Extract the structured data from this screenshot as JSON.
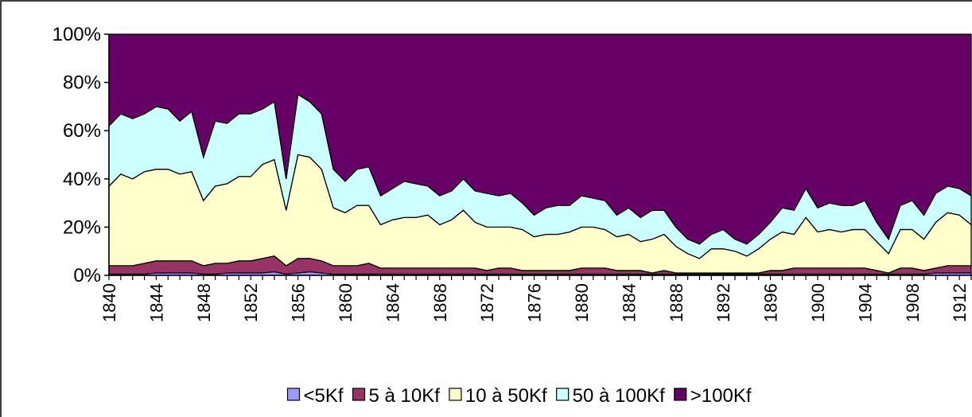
{
  "chart_data": {
    "type": "stacked_area_percent",
    "categories": [
      "1840",
      null,
      null,
      null,
      "1844",
      null,
      null,
      null,
      "1848",
      null,
      null,
      null,
      "1852",
      null,
      null,
      null,
      "1856",
      null,
      null,
      null,
      "1860",
      null,
      null,
      null,
      "1864",
      null,
      null,
      null,
      "1868",
      null,
      null,
      null,
      "1872",
      null,
      null,
      null,
      "1876",
      null,
      null,
      null,
      "1880",
      null,
      null,
      null,
      "1884",
      null,
      null,
      null,
      "1888",
      null,
      null,
      null,
      "1892",
      null,
      null,
      null,
      "1896",
      null,
      null,
      null,
      "1900",
      null,
      null,
      null,
      "1904",
      null,
      null,
      null,
      "1908",
      null,
      null,
      null,
      "1912",
      null
    ],
    "series": [
      {
        "name": "<5Kf",
        "color": "#9999ff",
        "values": [
          0.5,
          0.5,
          0.5,
          0.5,
          1,
          1,
          1,
          1,
          0.5,
          0.5,
          1,
          1,
          1,
          1,
          1.5,
          0.5,
          1,
          1.5,
          1,
          0.5,
          0.5,
          0.5,
          0.5,
          0.5,
          0.5,
          0.5,
          0.5,
          0.5,
          0.5,
          0.5,
          0.5,
          0.5,
          0.5,
          0.5,
          0.5,
          0.5,
          0.5,
          0.5,
          0.5,
          0.5,
          0.5,
          0.5,
          0.5,
          0.5,
          0.5,
          0.5,
          0.5,
          0.5,
          0.5,
          0.5,
          0.5,
          0.5,
          0.5,
          0.5,
          0.5,
          0.5,
          0.5,
          0.5,
          0.5,
          0.5,
          0.5,
          0.5,
          0.5,
          0.5,
          0.5,
          0.5,
          0.5,
          0.5,
          0.5,
          0.5,
          1,
          1,
          1,
          1
        ]
      },
      {
        "name": "5 à 10Kf",
        "color": "#993366",
        "values": [
          3.5,
          3.5,
          3.5,
          4.5,
          5,
          5,
          5,
          5,
          3.5,
          4.5,
          4,
          5,
          5,
          6,
          6.5,
          3.5,
          6,
          5.5,
          5,
          3.5,
          3.5,
          3.5,
          4.5,
          2.5,
          2.5,
          2.5,
          2.5,
          2.5,
          2.5,
          2.5,
          2.5,
          2.5,
          1.5,
          2.5,
          2.5,
          1.5,
          1.5,
          1.5,
          1.5,
          1.5,
          2.5,
          2.5,
          2.5,
          1.5,
          1.5,
          1.5,
          0.5,
          1.5,
          0.5,
          0.5,
          0.5,
          0.5,
          0.5,
          0.5,
          0.5,
          0.5,
          1.5,
          1.5,
          2.5,
          2.5,
          2.5,
          2.5,
          2.5,
          2.5,
          2.5,
          1.5,
          0.5,
          2.5,
          2.5,
          1.5,
          2,
          3,
          3,
          3
        ]
      },
      {
        "name": "10 à 50Kf",
        "color": "#ffffcc",
        "values": [
          33,
          38,
          36,
          38,
          38,
          38,
          36,
          37,
          27,
          32,
          33,
          35,
          35,
          39,
          40,
          23,
          43,
          42,
          38,
          24,
          22,
          25,
          24,
          18,
          20,
          21,
          21,
          22,
          18,
          20,
          24,
          19,
          18,
          17,
          17,
          17,
          14,
          15,
          15,
          16,
          17,
          17,
          16,
          14,
          15,
          12,
          14,
          15,
          11,
          8,
          6,
          10,
          10,
          9,
          7,
          10,
          13,
          16,
          14,
          21,
          15,
          16,
          15,
          16,
          16,
          12,
          8,
          16,
          16,
          13,
          19,
          22,
          21,
          17
        ]
      },
      {
        "name": "50 à 100Kf",
        "color": "#ccffff",
        "values": [
          25,
          25,
          25,
          24,
          26,
          25,
          22,
          25,
          18,
          27,
          25,
          26,
          26,
          23,
          24,
          13,
          25,
          23,
          23,
          16,
          13,
          15,
          16,
          12,
          13,
          15,
          14,
          12,
          12,
          12,
          13,
          13,
          14,
          13,
          14,
          11,
          9,
          11,
          12,
          11,
          13,
          12,
          12,
          9,
          11,
          10,
          12,
          10,
          8,
          6,
          6,
          6,
          8,
          5,
          5,
          6,
          7,
          10,
          10,
          12,
          10,
          11,
          11,
          10,
          12,
          8,
          6,
          10,
          12,
          10,
          12,
          11,
          11,
          12
        ]
      },
      {
        "name": ">100Kf",
        "color": "#660066",
        "values": [
          38,
          33,
          35,
          33,
          30,
          31,
          36,
          32,
          51,
          36,
          37,
          33,
          33,
          31,
          28,
          60,
          25,
          28,
          33,
          56,
          61,
          56,
          55,
          67,
          64,
          61,
          62,
          63,
          67,
          65,
          60,
          65,
          66,
          67,
          66,
          70,
          75,
          72,
          71,
          71,
          67,
          68,
          69,
          75,
          72,
          76,
          73,
          73,
          80,
          85,
          87,
          83,
          81,
          85,
          87,
          83,
          78,
          72,
          73,
          64,
          72,
          70,
          71,
          71,
          69,
          78,
          85,
          71,
          69,
          75,
          66,
          63,
          64,
          67
        ]
      }
    ],
    "ylim": [
      0,
      100
    ],
    "yticks": [
      {
        "value": 0,
        "label": "0%"
      },
      {
        "value": 20,
        "label": "20%"
      },
      {
        "value": 40,
        "label": "40%"
      },
      {
        "value": 60,
        "label": "60%"
      },
      {
        "value": 80,
        "label": "80%"
      },
      {
        "value": 100,
        "label": "100%"
      }
    ],
    "legend": "bottom"
  }
}
